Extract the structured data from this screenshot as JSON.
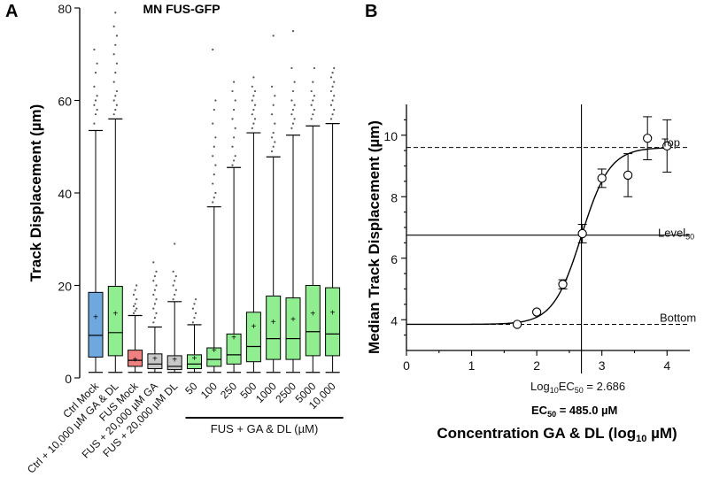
{
  "chart_data": [
    {
      "panel": "A",
      "type": "box",
      "title": "MN FUS-GFP",
      "ylabel": "Track Displacement (µm)",
      "ylim": [
        0,
        80
      ],
      "yticks": [
        0,
        20,
        40,
        60,
        80
      ],
      "group_label": "FUS + GA & DL (µM)",
      "colors": {
        "blue": "#6fa8dc",
        "green": "#90ee90",
        "red": "#f08080",
        "gray": "#c8c8c8"
      },
      "boxes": [
        {
          "label": "Ctrl Mock",
          "color": "blue",
          "wlo": 1.2,
          "q1": 4.5,
          "median": 9.2,
          "mean": 13.2,
          "q3": 18.5,
          "whi": 53.5,
          "outliers": [
            55,
            57,
            58,
            59,
            60,
            61,
            63,
            66,
            68,
            71
          ]
        },
        {
          "label": "Ctrl + 10,000 µM GA & DL",
          "color": "green",
          "wlo": 1.2,
          "q1": 4.8,
          "median": 9.8,
          "mean": 14.0,
          "q3": 19.8,
          "whi": 56.0,
          "outliers": [
            57,
            58,
            59,
            60,
            61,
            62,
            64,
            66,
            68,
            70,
            72,
            74,
            76,
            79
          ]
        },
        {
          "label": "FUS Mock",
          "color": "red",
          "wlo": 1.2,
          "q1": 2.5,
          "median": 3.8,
          "mean": 4.0,
          "q3": 6.0,
          "whi": 13.5,
          "outliers": [
            14,
            14.5,
            15,
            15.5,
            16,
            17,
            18,
            19,
            20
          ]
        },
        {
          "label": "FUS + 20,000 µM GA",
          "color": "gray",
          "wlo": 1.2,
          "q1": 2.0,
          "median": 3.0,
          "mean": 4.2,
          "q3": 5.2,
          "whi": 11.0,
          "outliers": [
            12,
            13,
            14,
            15,
            16,
            17,
            18,
            19,
            20,
            21,
            22,
            23,
            25
          ]
        },
        {
          "label": "FUS + 20,000 µM DL",
          "color": "gray",
          "wlo": 1.2,
          "q1": 1.8,
          "median": 2.5,
          "mean": 4.0,
          "q3": 4.8,
          "whi": 16.5,
          "outliers": [
            17,
            18,
            19,
            20,
            21,
            22,
            23,
            29
          ]
        },
        {
          "label": "50",
          "color": "green",
          "wlo": 1.2,
          "q1": 2.0,
          "median": 3.0,
          "mean": 4.3,
          "q3": 5.0,
          "whi": 11.5,
          "outliers": [
            12,
            13,
            14,
            15,
            16,
            17
          ]
        },
        {
          "label": "100",
          "color": "green",
          "wlo": 1.2,
          "q1": 2.5,
          "median": 4.0,
          "mean": 6.0,
          "q3": 6.5,
          "whi": 37.0,
          "outliers": [
            38,
            39,
            40,
            42,
            44,
            46,
            48,
            50,
            52,
            55,
            58,
            60,
            71
          ]
        },
        {
          "label": "250",
          "color": "green",
          "wlo": 1.2,
          "q1": 3.0,
          "median": 5.0,
          "mean": 8.8,
          "q3": 9.5,
          "whi": 45.5,
          "outliers": [
            46,
            47,
            48,
            50,
            52,
            54,
            56,
            58,
            60,
            62,
            64
          ]
        },
        {
          "label": "500",
          "color": "green",
          "wlo": 1.2,
          "q1": 3.5,
          "median": 6.8,
          "mean": 11.2,
          "q3": 14.2,
          "whi": 53.0,
          "outliers": [
            54,
            55,
            56,
            57,
            58,
            59,
            60,
            61,
            62,
            63,
            65
          ]
        },
        {
          "label": "1000",
          "color": "green",
          "wlo": 1.2,
          "q1": 4.0,
          "median": 8.5,
          "mean": 12.2,
          "q3": 17.7,
          "whi": 47.8,
          "outliers": [
            49,
            50,
            51,
            52,
            53,
            55,
            57,
            59,
            61,
            63,
            74
          ]
        },
        {
          "label": "2500",
          "color": "green",
          "wlo": 1.2,
          "q1": 4.0,
          "median": 8.5,
          "mean": 12.7,
          "q3": 17.3,
          "whi": 52.5,
          "outliers": [
            54,
            55,
            56,
            57,
            58,
            59,
            60,
            62,
            64,
            67,
            75
          ]
        },
        {
          "label": "5000",
          "color": "green",
          "wlo": 1.2,
          "q1": 4.8,
          "median": 10.0,
          "mean": 14.0,
          "q3": 20.0,
          "whi": 54.5,
          "outliers": [
            56,
            57,
            58,
            59,
            60,
            61,
            62,
            64,
            67
          ]
        },
        {
          "label": "10,000",
          "color": "green",
          "wlo": 1.2,
          "q1": 4.8,
          "median": 9.5,
          "mean": 14.2,
          "q3": 19.5,
          "whi": 55.0,
          "outliers": [
            56,
            57,
            58,
            59,
            60,
            61,
            62,
            63,
            64,
            65,
            66,
            67
          ]
        }
      ]
    },
    {
      "panel": "B",
      "type": "scatter",
      "xlabel_main": "Concentration GA & DL (log",
      "xlabel_sub": "10",
      "xlabel_tail": " µM)",
      "ylabel": "Median Track Displacement (µm)",
      "xlim": [
        0,
        4.35
      ],
      "ylim": [
        3,
        11
      ],
      "xticks": [
        0,
        1,
        2,
        3,
        4
      ],
      "yticks": [
        4,
        6,
        8,
        10
      ],
      "points": [
        {
          "x": 1.7,
          "y": 3.85,
          "err": 0.0
        },
        {
          "x": 2.0,
          "y": 4.25,
          "err": 0.0
        },
        {
          "x": 2.4,
          "y": 5.15,
          "err": 0.15
        },
        {
          "x": 2.7,
          "y": 6.8,
          "err": 0.3
        },
        {
          "x": 3.0,
          "y": 8.6,
          "err": 0.3
        },
        {
          "x": 3.4,
          "y": 8.7,
          "err": 0.7
        },
        {
          "x": 3.7,
          "y": 9.9,
          "err": 0.7
        },
        {
          "x": 4.0,
          "y": 9.65,
          "err": 0.85
        }
      ],
      "fit": {
        "bottom": 3.85,
        "top": 9.6,
        "log_ec50": 2.686,
        "hill": 2.0
      },
      "level50": 6.75,
      "annotations": {
        "top": "Top",
        "level50_main": "Level",
        "level50_sub": "50",
        "bottom": "Bottom",
        "logec50_pre": "Log",
        "logec50_sub1": "10",
        "logec50_mid": "EC",
        "logec50_sub2": "50",
        "logec50_val": " = 2.686",
        "ec50_main": "EC",
        "ec50_sub": "50",
        "ec50_val": " = 485.0 µM"
      }
    }
  ],
  "panel_letters": {
    "a": "A",
    "b": "B"
  }
}
